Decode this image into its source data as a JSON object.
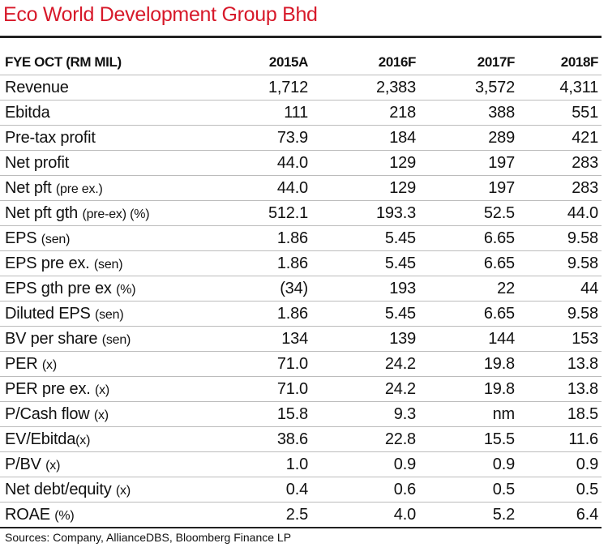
{
  "title": "Eco World Development Group Bhd",
  "header": {
    "label": "FYE OCT (RM MIL)",
    "columns": [
      "2015A",
      "2016F",
      "2017F",
      "2018F"
    ]
  },
  "rows": [
    {
      "label": "Revenue",
      "unit": "",
      "values": [
        "1,712",
        "2,383",
        "3,572",
        "4,311"
      ]
    },
    {
      "label": "Ebitda",
      "unit": "",
      "values": [
        "111",
        "218",
        "388",
        "551"
      ]
    },
    {
      "label": "Pre-tax profit",
      "unit": "",
      "values": [
        "73.9",
        "184",
        "289",
        "421"
      ]
    },
    {
      "label": "Net profit",
      "unit": "",
      "values": [
        "44.0",
        "129",
        "197",
        "283"
      ]
    },
    {
      "label": "Net pft ",
      "unit": "(pre ex.)",
      "values": [
        "44.0",
        "129",
        "197",
        "283"
      ]
    },
    {
      "label": "Net pft gth ",
      "unit": "(pre-ex) (%)",
      "values": [
        "512.1",
        "193.3",
        "52.5",
        "44.0"
      ]
    },
    {
      "label": "EPS ",
      "unit": "(sen)",
      "values": [
        "1.86",
        "5.45",
        "6.65",
        "9.58"
      ]
    },
    {
      "label": "EPS pre ex. ",
      "unit": "(sen)",
      "values": [
        "1.86",
        "5.45",
        "6.65",
        "9.58"
      ]
    },
    {
      "label": "EPS gth pre ex ",
      "unit": "(%)",
      "values": [
        "(34)",
        "193",
        "22",
        "44"
      ]
    },
    {
      "label": "Diluted EPS ",
      "unit": "(sen)",
      "values": [
        "1.86",
        "5.45",
        "6.65",
        "9.58"
      ]
    },
    {
      "label": "BV per share ",
      "unit": "(sen)",
      "values": [
        "134",
        "139",
        "144",
        "153"
      ]
    },
    {
      "label": "PER ",
      "unit": "(x)",
      "values": [
        "71.0",
        "24.2",
        "19.8",
        "13.8"
      ]
    },
    {
      "label": "PER pre ex. ",
      "unit": "(x)",
      "values": [
        "71.0",
        "24.2",
        "19.8",
        "13.8"
      ]
    },
    {
      "label": "P/Cash flow ",
      "unit": "(x)",
      "values": [
        "15.8",
        "9.3",
        "nm",
        "18.5"
      ]
    },
    {
      "label": "EV/Ebitda",
      "unit": "(x)",
      "values": [
        "38.6",
        "22.8",
        "15.5",
        "11.6"
      ]
    },
    {
      "label": "P/BV ",
      "unit": "(x)",
      "values": [
        "1.0",
        "0.9",
        "0.9",
        "0.9"
      ]
    },
    {
      "label": "Net debt/equity ",
      "unit": "(x)",
      "values": [
        "0.4",
        "0.6",
        "0.5",
        "0.5"
      ]
    },
    {
      "label": "ROAE ",
      "unit": "(%)",
      "values": [
        "2.5",
        "4.0",
        "5.2",
        "6.4"
      ]
    }
  ],
  "source": "Sources: Company, AllianceDBS, Bloomberg Finance LP",
  "colors": {
    "title": "#d7192a",
    "rule": "#222222",
    "divider": "#bcbcbc"
  }
}
